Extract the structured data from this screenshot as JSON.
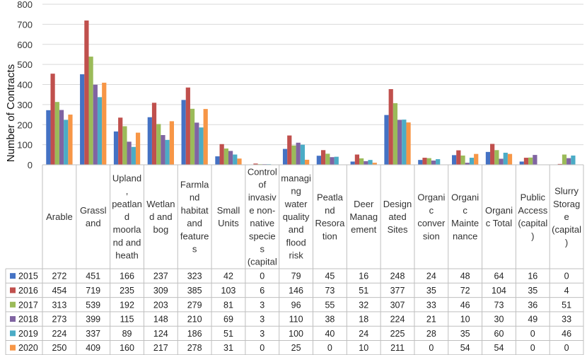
{
  "chart_data": {
    "type": "bar",
    "ylabel": "Number of Contracts",
    "ylim": [
      0,
      800
    ],
    "yticks": [
      0,
      100,
      200,
      300,
      400,
      500,
      600,
      700,
      800
    ],
    "grid": true,
    "legend": "data table rows below the plot",
    "categories": [
      "Arable",
      "Grassland",
      "Upland, peatland moorland and heath",
      "Wetland and bog",
      "Farmland habitat and features",
      "Small Units",
      "Control of invasive non-native species (capital)",
      "managing water quality and flood risk",
      "Peatland Resoration",
      "Deer Management",
      "Designated Sites",
      "Organic conversion",
      "Organic Maintenance",
      "Organic Total",
      "Public Access (capital)",
      "Slurry Storage (capital)"
    ],
    "category_label_lines": [
      [
        "Arable"
      ],
      [
        "Grassl",
        "and"
      ],
      [
        "Upland",
        ",",
        "peatlan",
        "d",
        "moorla",
        "nd and",
        "heath"
      ],
      [
        "Wetlan",
        "d and",
        "bog"
      ],
      [
        "Farmla",
        "nd",
        "habitat",
        "and",
        "feature",
        "s"
      ],
      [
        "Small",
        "Units"
      ],
      [
        "Control",
        "of",
        "invasiv",
        "e non-",
        "native",
        "specie",
        "s",
        "(capital"
      ],
      [
        "managi",
        "ng",
        "water",
        "quality",
        "and",
        "flood",
        "risk"
      ],
      [
        "Peatla",
        "nd",
        "Resora",
        "tion"
      ],
      [
        "Deer",
        "Manag",
        "ement"
      ],
      [
        "Design",
        "ated",
        "Sites"
      ],
      [
        "Organi",
        "c",
        "conver",
        "sion"
      ],
      [
        "Organi",
        "c",
        "Mainte",
        "nance"
      ],
      [
        "Organi",
        "c Total"
      ],
      [
        "Public",
        "Access",
        "(capital",
        ")"
      ],
      [
        "Slurry",
        "Storag",
        "e",
        "(capital",
        ")"
      ]
    ],
    "series": [
      {
        "name": "2015",
        "color": "#4472c4",
        "values": [
          272,
          451,
          166,
          237,
          323,
          42,
          0,
          79,
          45,
          16,
          248,
          24,
          48,
          64,
          16,
          0
        ]
      },
      {
        "name": "2016",
        "color": "#c0504d",
        "values": [
          454,
          719,
          235,
          309,
          385,
          103,
          6,
          146,
          73,
          51,
          377,
          35,
          72,
          104,
          35,
          4
        ]
      },
      {
        "name": "2017",
        "color": "#9bbb59",
        "values": [
          313,
          539,
          192,
          203,
          279,
          81,
          3,
          96,
          55,
          32,
          307,
          33,
          46,
          73,
          36,
          51
        ]
      },
      {
        "name": "2018",
        "color": "#8064a2",
        "values": [
          273,
          399,
          115,
          148,
          210,
          69,
          3,
          110,
          38,
          18,
          224,
          21,
          10,
          30,
          49,
          33
        ]
      },
      {
        "name": "2019",
        "color": "#4bacc6",
        "values": [
          224,
          337,
          89,
          124,
          186,
          51,
          3,
          100,
          40,
          24,
          225,
          28,
          35,
          60,
          0,
          46
        ]
      },
      {
        "name": "2020",
        "color": "#f79646",
        "values": [
          250,
          409,
          160,
          217,
          278,
          31,
          0,
          25,
          0,
          10,
          211,
          0,
          54,
          54,
          0,
          0
        ]
      }
    ]
  }
}
